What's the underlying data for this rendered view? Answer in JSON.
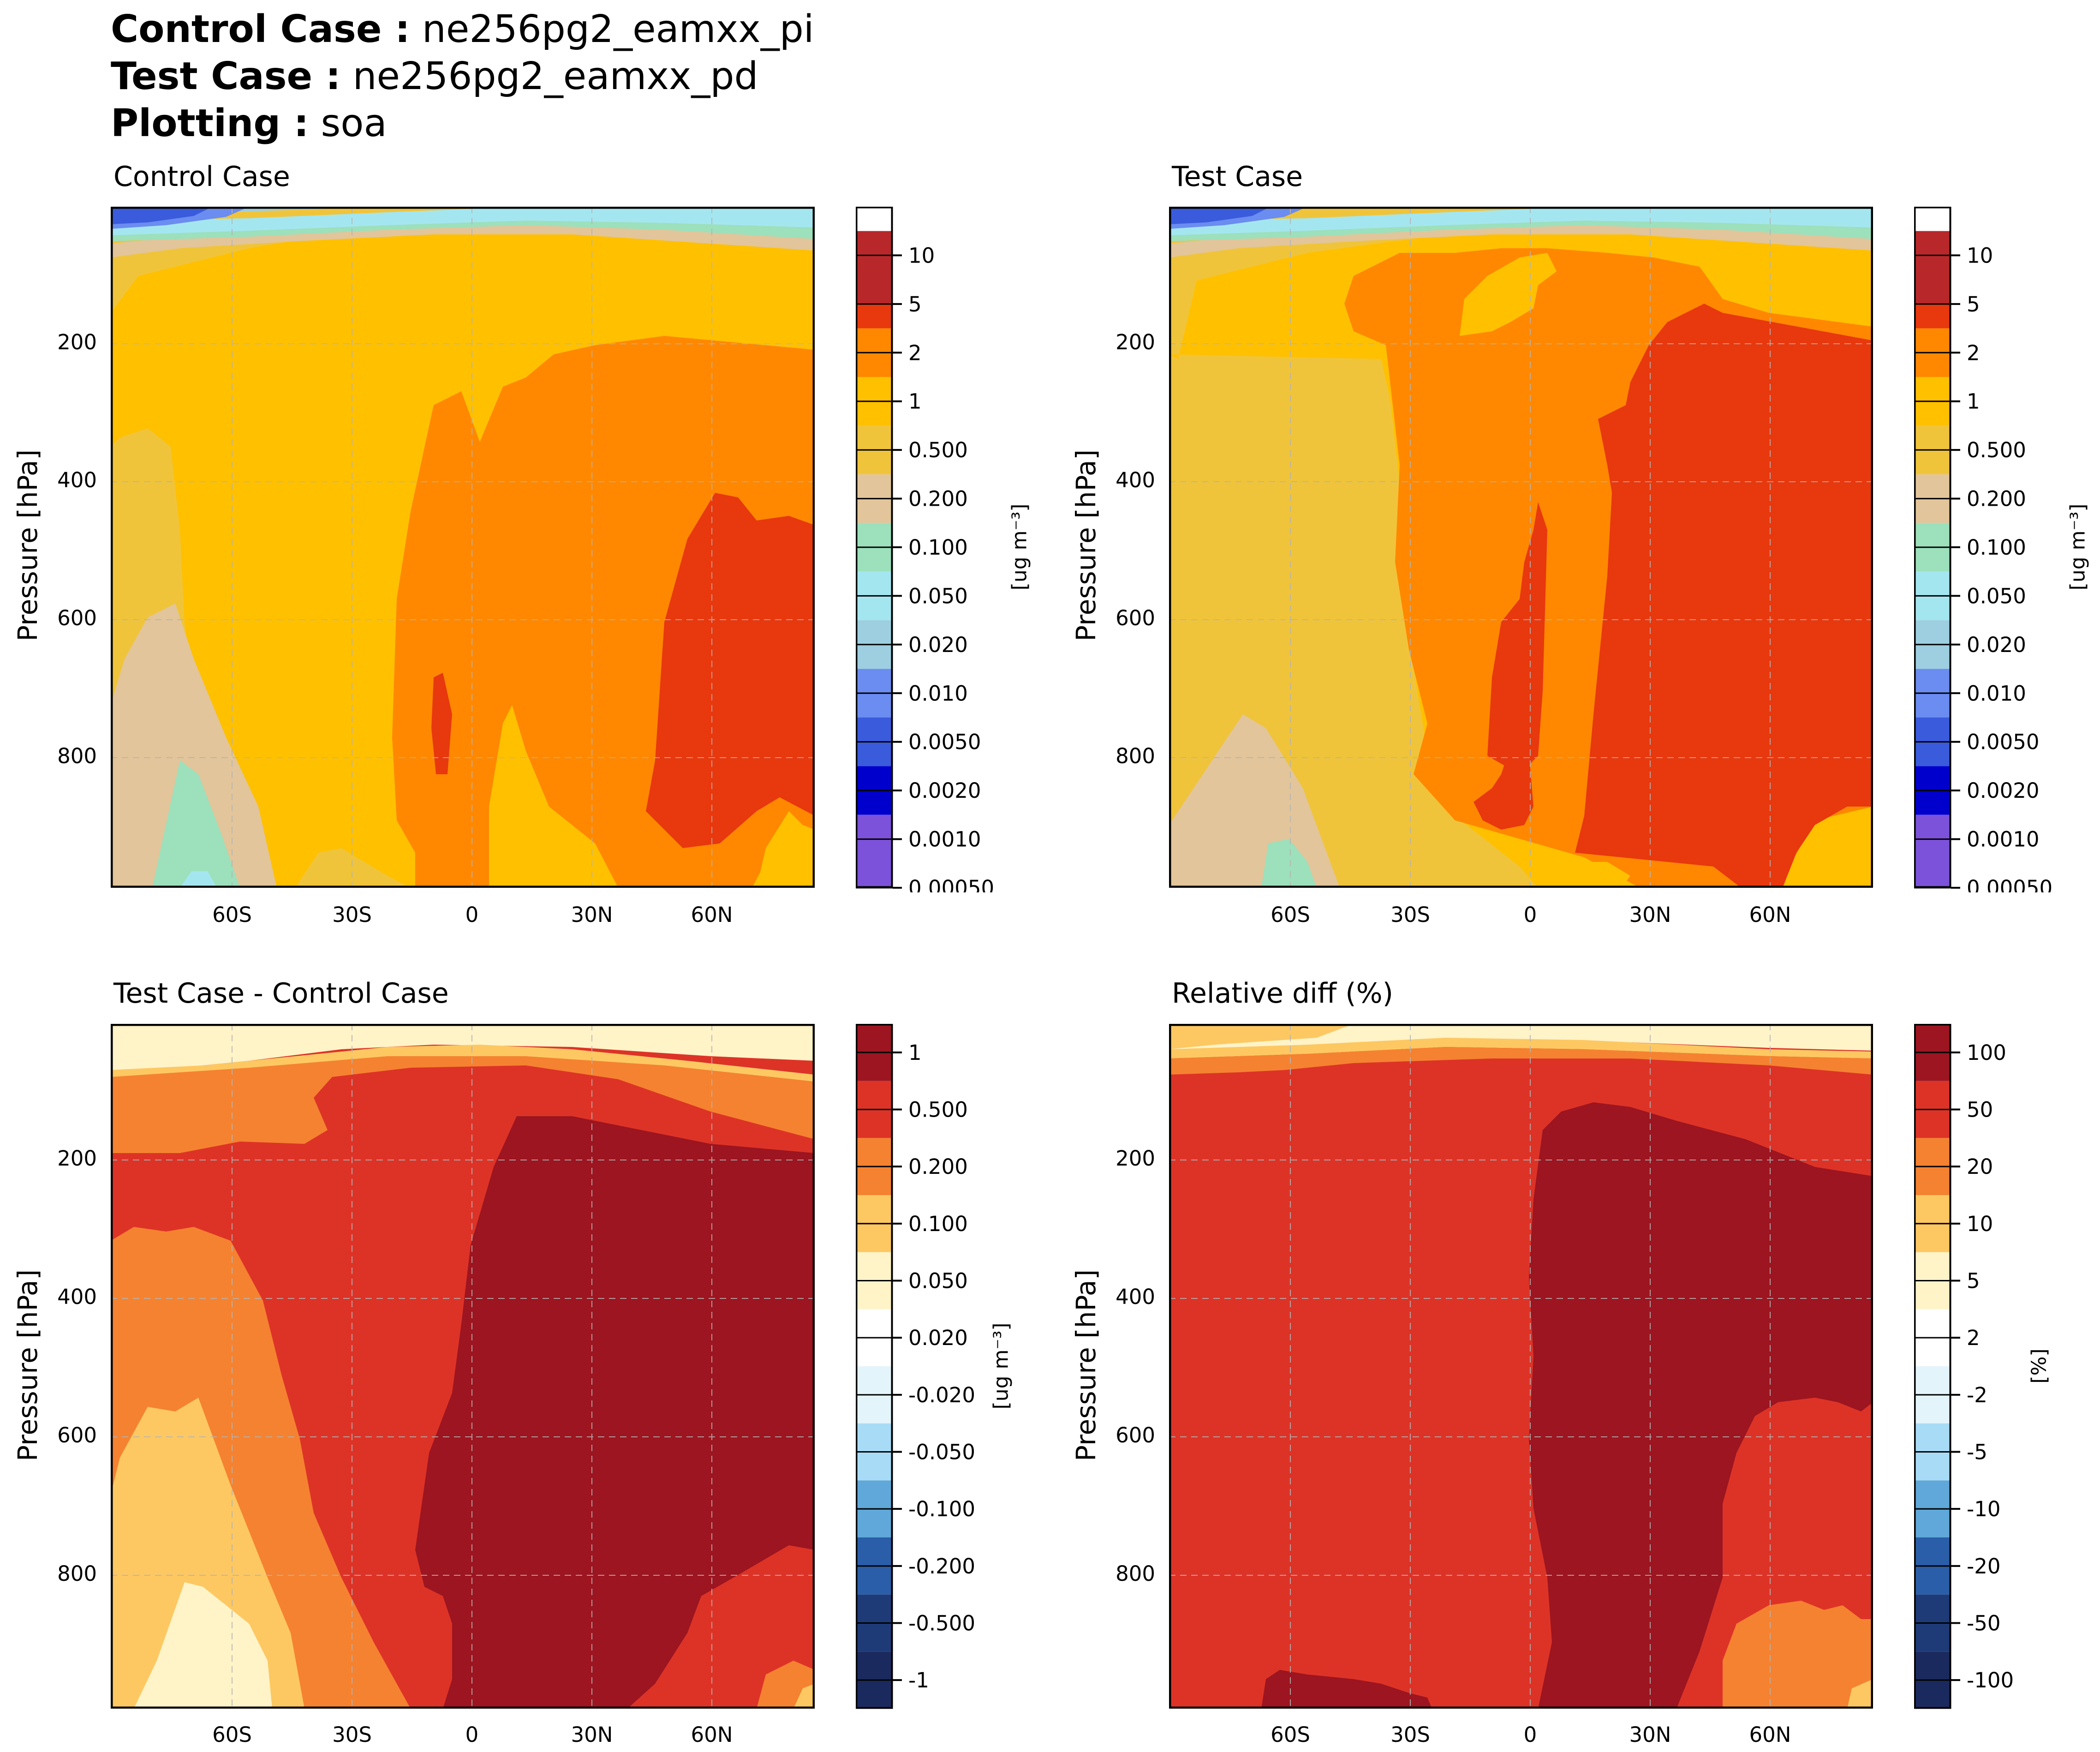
{
  "header": {
    "control_label": "Control Case :",
    "control_value": "ne256pg2_eamxx_pi",
    "test_label": "Test Case :",
    "test_value": "ne256pg2_eamxx_pd",
    "plotting_label": "Plotting :",
    "plotting_value": "soa"
  },
  "chart_data": [
    {
      "type": "contourf",
      "title": "Control Case",
      "ylabel": "Pressure [hPa]",
      "xticks": [
        "60S",
        "30S",
        "0",
        "30N",
        "60N"
      ],
      "yticks": [
        "200",
        "400",
        "600",
        "800"
      ],
      "colorbar_label": "[ug m⁻³]",
      "levels": [
        "10",
        "5",
        "2",
        "1",
        "0.500",
        "0.200",
        "0.100",
        "0.050",
        "0.020",
        "0.010",
        "0.0050",
        "0.0020",
        "0.0010",
        "0.00050"
      ]
    },
    {
      "type": "contourf",
      "title": "Test Case",
      "ylabel": "Pressure [hPa]",
      "xticks": [
        "60S",
        "30S",
        "0",
        "30N",
        "60N"
      ],
      "yticks": [
        "200",
        "400",
        "600",
        "800"
      ],
      "colorbar_label": "[ug m⁻³]",
      "levels": [
        "10",
        "5",
        "2",
        "1",
        "0.500",
        "0.200",
        "0.100",
        "0.050",
        "0.020",
        "0.010",
        "0.0050",
        "0.0020",
        "0.0010",
        "0.00050"
      ]
    },
    {
      "type": "contourf",
      "title": "Test Case - Control Case",
      "ylabel": "Pressure [hPa]",
      "xticks": [
        "60S",
        "30S",
        "0",
        "30N",
        "60N"
      ],
      "yticks": [
        "200",
        "400",
        "600",
        "800"
      ],
      "colorbar_label": "[ug m⁻³]",
      "levels": [
        "1",
        "0.500",
        "0.200",
        "0.100",
        "0.050",
        "0.020",
        "-0.020",
        "-0.050",
        "-0.100",
        "-0.200",
        "-0.500",
        "-1"
      ]
    },
    {
      "type": "contourf",
      "title": "Relative diff (%)",
      "ylabel": "Pressure [hPa]",
      "xticks": [
        "60S",
        "30S",
        "0",
        "30N",
        "60N"
      ],
      "yticks": [
        "200",
        "400",
        "600",
        "800"
      ],
      "colorbar_label": "[%]",
      "levels": [
        "100",
        "50",
        "20",
        "10",
        "5",
        "2",
        "-2",
        "-5",
        "-10",
        "-20",
        "-50",
        "-100"
      ]
    }
  ],
  "colors": {
    "abs_scale": [
      "#7b52d9",
      "#0000cc",
      "#3a5bdc",
      "#6b8cf0",
      "#9dcfe0",
      "#a4e6f0",
      "#9ce0bc",
      "#e2c59a",
      "#f0c43a",
      "#ffc000",
      "#ff8800",
      "#e8380e",
      "#b8282a"
    ],
    "diff_scale": [
      "#1b2a5e",
      "#1e3b78",
      "#2a5ea8",
      "#5fa8d9",
      "#a8dcf6",
      "#e4f4fb",
      "#ffffff",
      "#fff3c8",
      "#fdc862",
      "#f58230",
      "#dd3327",
      "#9c1520"
    ]
  }
}
